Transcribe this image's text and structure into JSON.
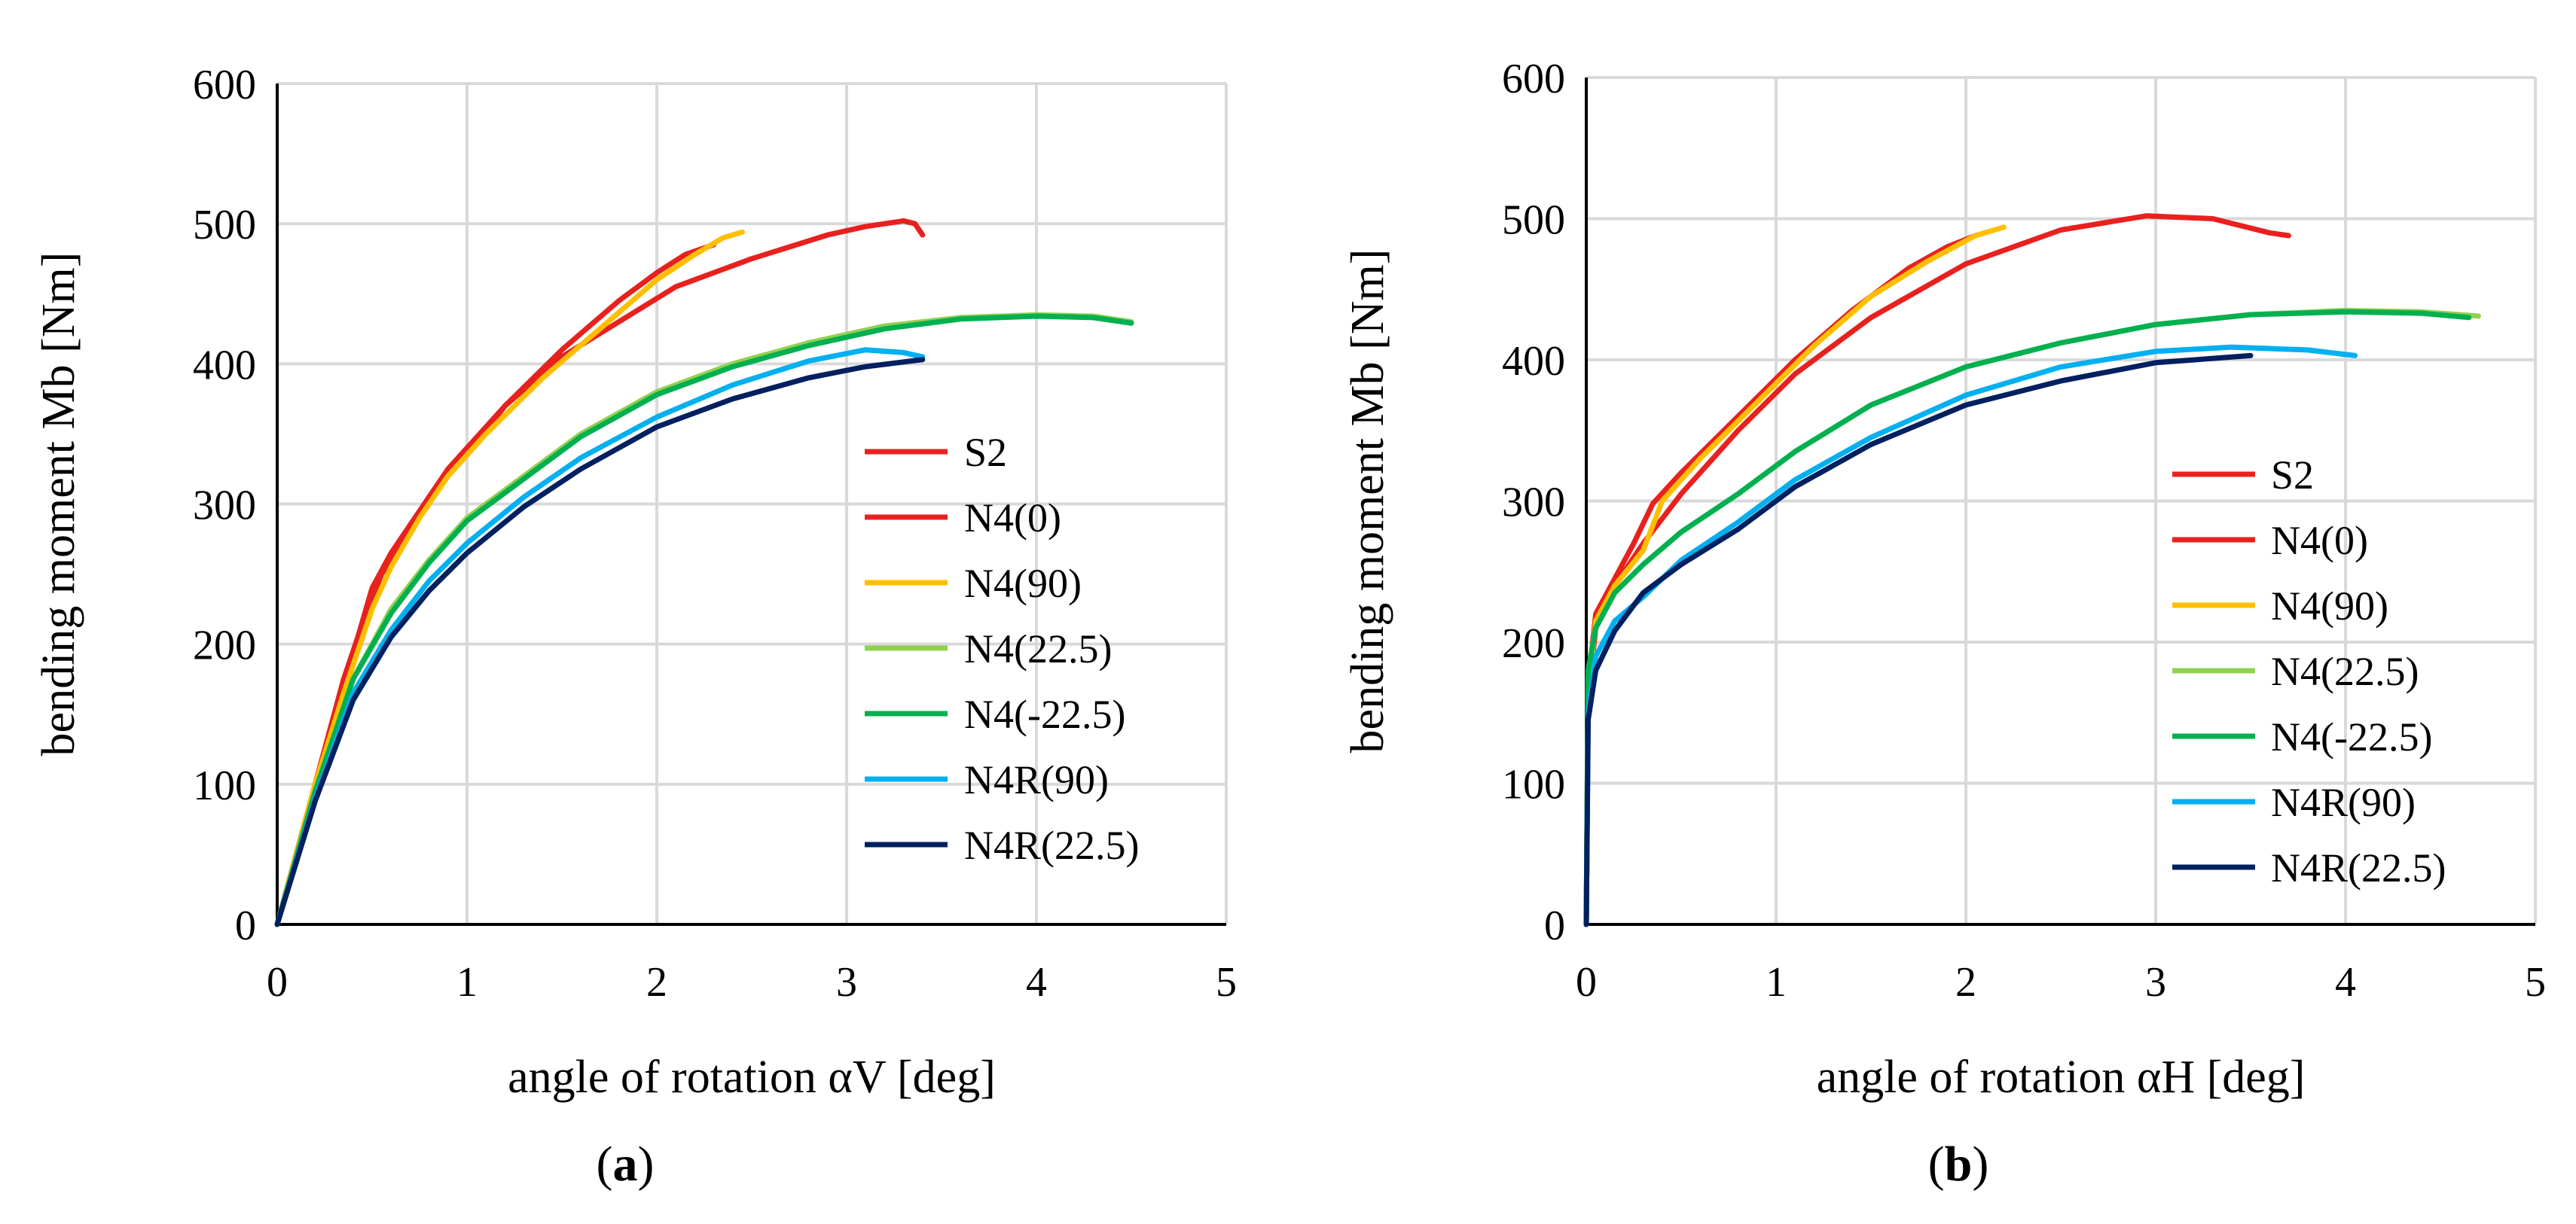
{
  "chart_data": [
    {
      "type": "line",
      "panel_label": "a",
      "xlabel": "angle of rotation αV [deg]",
      "ylabel": "bending moment Mb [Nm]",
      "xlim": [
        0,
        5
      ],
      "ylim": [
        0,
        600
      ],
      "xticks": [
        0,
        1,
        2,
        3,
        4,
        5
      ],
      "yticks": [
        0,
        100,
        200,
        300,
        400,
        500,
        600
      ],
      "grid": true,
      "legend_position": "bottom-right",
      "series": [
        {
          "name": "S2",
          "color": "#e8211e",
          "points": [
            [
              0,
              0
            ],
            [
              0.2,
              100
            ],
            [
              0.35,
              170
            ],
            [
              0.5,
              240
            ],
            [
              0.6,
              265
            ],
            [
              0.7,
              285
            ],
            [
              0.9,
              325
            ],
            [
              1.2,
              370
            ],
            [
              1.5,
              405
            ],
            [
              1.8,
              430
            ],
            [
              2.1,
              455
            ],
            [
              2.5,
              475
            ],
            [
              2.9,
              492
            ],
            [
              3.1,
              498
            ],
            [
              3.3,
              502
            ],
            [
              3.36,
              500
            ],
            [
              3.4,
              492
            ]
          ]
        },
        {
          "name": "N4(0)",
          "color": "#e8211e",
          "points": [
            [
              0,
              0
            ],
            [
              0.2,
              100
            ],
            [
              0.35,
              175
            ],
            [
              0.45,
              215
            ],
            [
              0.55,
              250
            ],
            [
              0.65,
              270
            ],
            [
              0.8,
              305
            ],
            [
              1.0,
              335
            ],
            [
              1.2,
              370
            ],
            [
              1.5,
              410
            ],
            [
              1.8,
              445
            ],
            [
              2.0,
              465
            ],
            [
              2.15,
              478
            ],
            [
              2.3,
              485
            ]
          ]
        },
        {
          "name": "N4(90)",
          "color": "#ffbf00",
          "points": [
            [
              0,
              0
            ],
            [
              0.2,
              100
            ],
            [
              0.35,
              165
            ],
            [
              0.5,
              225
            ],
            [
              0.6,
              255
            ],
            [
              0.75,
              290
            ],
            [
              0.9,
              320
            ],
            [
              1.1,
              350
            ],
            [
              1.4,
              390
            ],
            [
              1.7,
              425
            ],
            [
              2.0,
              460
            ],
            [
              2.2,
              478
            ],
            [
              2.35,
              490
            ],
            [
              2.45,
              494
            ]
          ]
        },
        {
          "name": "N4(22.5)",
          "color": "#92d050",
          "points": [
            [
              0,
              0
            ],
            [
              0.2,
              95
            ],
            [
              0.4,
              175
            ],
            [
              0.6,
              225
            ],
            [
              0.8,
              260
            ],
            [
              1.0,
              290
            ],
            [
              1.3,
              320
            ],
            [
              1.6,
              350
            ],
            [
              2.0,
              380
            ],
            [
              2.4,
              400
            ],
            [
              2.8,
              415
            ],
            [
              3.2,
              427
            ],
            [
              3.6,
              433
            ],
            [
              4.0,
              435
            ],
            [
              4.3,
              434
            ],
            [
              4.5,
              430
            ]
          ]
        },
        {
          "name": "N4(-22.5)",
          "color": "#00b050",
          "points": [
            [
              0,
              0
            ],
            [
              0.2,
              95
            ],
            [
              0.4,
              175
            ],
            [
              0.6,
              222
            ],
            [
              0.8,
              258
            ],
            [
              1.0,
              288
            ],
            [
              1.3,
              318
            ],
            [
              1.6,
              348
            ],
            [
              2.0,
              378
            ],
            [
              2.4,
              398
            ],
            [
              2.8,
              413
            ],
            [
              3.2,
              425
            ],
            [
              3.6,
              432
            ],
            [
              4.0,
              434
            ],
            [
              4.3,
              433
            ],
            [
              4.5,
              429
            ]
          ]
        },
        {
          "name": "N4R(90)",
          "color": "#00b0f0",
          "points": [
            [
              0,
              0
            ],
            [
              0.2,
              90
            ],
            [
              0.4,
              165
            ],
            [
              0.6,
              210
            ],
            [
              0.8,
              245
            ],
            [
              1.0,
              272
            ],
            [
              1.3,
              305
            ],
            [
              1.6,
              333
            ],
            [
              2.0,
              362
            ],
            [
              2.4,
              385
            ],
            [
              2.8,
              402
            ],
            [
              3.1,
              410
            ],
            [
              3.3,
              408
            ],
            [
              3.4,
              405
            ]
          ]
        },
        {
          "name": "N4R(22.5)",
          "color": "#002060",
          "points": [
            [
              0,
              0
            ],
            [
              0.2,
              88
            ],
            [
              0.4,
              160
            ],
            [
              0.6,
              205
            ],
            [
              0.8,
              238
            ],
            [
              1.0,
              265
            ],
            [
              1.3,
              298
            ],
            [
              1.6,
              325
            ],
            [
              2.0,
              355
            ],
            [
              2.4,
              375
            ],
            [
              2.8,
              390
            ],
            [
              3.1,
              398
            ],
            [
              3.4,
              403
            ]
          ]
        }
      ]
    },
    {
      "type": "line",
      "panel_label": "b",
      "xlabel": "angle of rotation αH [deg]",
      "ylabel": "bending moment Mb [Nm]",
      "xlim": [
        0,
        5
      ],
      "ylim": [
        0,
        600
      ],
      "xticks": [
        0,
        1,
        2,
        3,
        4,
        5
      ],
      "yticks": [
        0,
        100,
        200,
        300,
        400,
        500,
        600
      ],
      "grid": true,
      "legend_position": "bottom-right",
      "series": [
        {
          "name": "S2",
          "color": "#e8211e",
          "points": [
            [
              0,
              0
            ],
            [
              0.01,
              160
            ],
            [
              0.05,
              210
            ],
            [
              0.15,
              240
            ],
            [
              0.3,
              270
            ],
            [
              0.5,
              305
            ],
            [
              0.8,
              350
            ],
            [
              1.1,
              390
            ],
            [
              1.5,
              430
            ],
            [
              2.0,
              468
            ],
            [
              2.5,
              492
            ],
            [
              2.95,
              502
            ],
            [
              3.3,
              500
            ],
            [
              3.6,
              490
            ],
            [
              3.7,
              488
            ]
          ]
        },
        {
          "name": "N4(0)",
          "color": "#e8211e",
          "points": [
            [
              0,
              0
            ],
            [
              0.01,
              170
            ],
            [
              0.05,
              220
            ],
            [
              0.15,
              245
            ],
            [
              0.25,
              270
            ],
            [
              0.35,
              298
            ],
            [
              0.5,
              320
            ],
            [
              0.8,
              360
            ],
            [
              1.1,
              400
            ],
            [
              1.4,
              435
            ],
            [
              1.7,
              465
            ],
            [
              1.9,
              480
            ],
            [
              2.05,
              488
            ]
          ]
        },
        {
          "name": "N4(90)",
          "color": "#ffbf00",
          "points": [
            [
              0,
              0
            ],
            [
              0.01,
              165
            ],
            [
              0.05,
              215
            ],
            [
              0.15,
              240
            ],
            [
              0.3,
              265
            ],
            [
              0.4,
              300
            ],
            [
              0.6,
              330
            ],
            [
              0.9,
              370
            ],
            [
              1.2,
              410
            ],
            [
              1.5,
              445
            ],
            [
              1.8,
              470
            ],
            [
              2.05,
              488
            ],
            [
              2.2,
              494
            ]
          ]
        },
        {
          "name": "N4(22.5)",
          "color": "#92d050",
          "points": [
            [
              0,
              0
            ],
            [
              0.01,
              180
            ],
            [
              0.05,
              210
            ],
            [
              0.15,
              235
            ],
            [
              0.3,
              255
            ],
            [
              0.5,
              278
            ],
            [
              0.8,
              305
            ],
            [
              1.1,
              335
            ],
            [
              1.5,
              368
            ],
            [
              2.0,
              395
            ],
            [
              2.5,
              412
            ],
            [
              3.0,
              425
            ],
            [
              3.5,
              432
            ],
            [
              4.0,
              435
            ],
            [
              4.4,
              434
            ],
            [
              4.7,
              431
            ]
          ]
        },
        {
          "name": "N4(-22.5)",
          "color": "#00b050",
          "points": [
            [
              0,
              0
            ],
            [
              0.01,
              180
            ],
            [
              0.05,
              210
            ],
            [
              0.15,
              235
            ],
            [
              0.3,
              255
            ],
            [
              0.5,
              278
            ],
            [
              0.8,
              305
            ],
            [
              1.1,
              335
            ],
            [
              1.5,
              368
            ],
            [
              2.0,
              395
            ],
            [
              2.5,
              412
            ],
            [
              3.0,
              425
            ],
            [
              3.5,
              432
            ],
            [
              4.0,
              434
            ],
            [
              4.4,
              433
            ],
            [
              4.65,
              430
            ]
          ]
        },
        {
          "name": "N4R(90)",
          "color": "#00b0f0",
          "points": [
            [
              0,
              0
            ],
            [
              0.01,
              150
            ],
            [
              0.05,
              190
            ],
            [
              0.15,
              215
            ],
            [
              0.3,
              232
            ],
            [
              0.5,
              258
            ],
            [
              0.8,
              285
            ],
            [
              1.1,
              315
            ],
            [
              1.5,
              345
            ],
            [
              2.0,
              375
            ],
            [
              2.5,
              395
            ],
            [
              3.0,
              406
            ],
            [
              3.4,
              409
            ],
            [
              3.8,
              407
            ],
            [
              4.05,
              403
            ]
          ]
        },
        {
          "name": "N4R(22.5)",
          "color": "#002060",
          "points": [
            [
              0,
              0
            ],
            [
              0.01,
              145
            ],
            [
              0.05,
              180
            ],
            [
              0.15,
              208
            ],
            [
              0.3,
              235
            ],
            [
              0.5,
              255
            ],
            [
              0.8,
              280
            ],
            [
              1.1,
              310
            ],
            [
              1.5,
              340
            ],
            [
              2.0,
              368
            ],
            [
              2.5,
              385
            ],
            [
              3.0,
              398
            ],
            [
              3.5,
              403
            ]
          ]
        }
      ]
    }
  ]
}
